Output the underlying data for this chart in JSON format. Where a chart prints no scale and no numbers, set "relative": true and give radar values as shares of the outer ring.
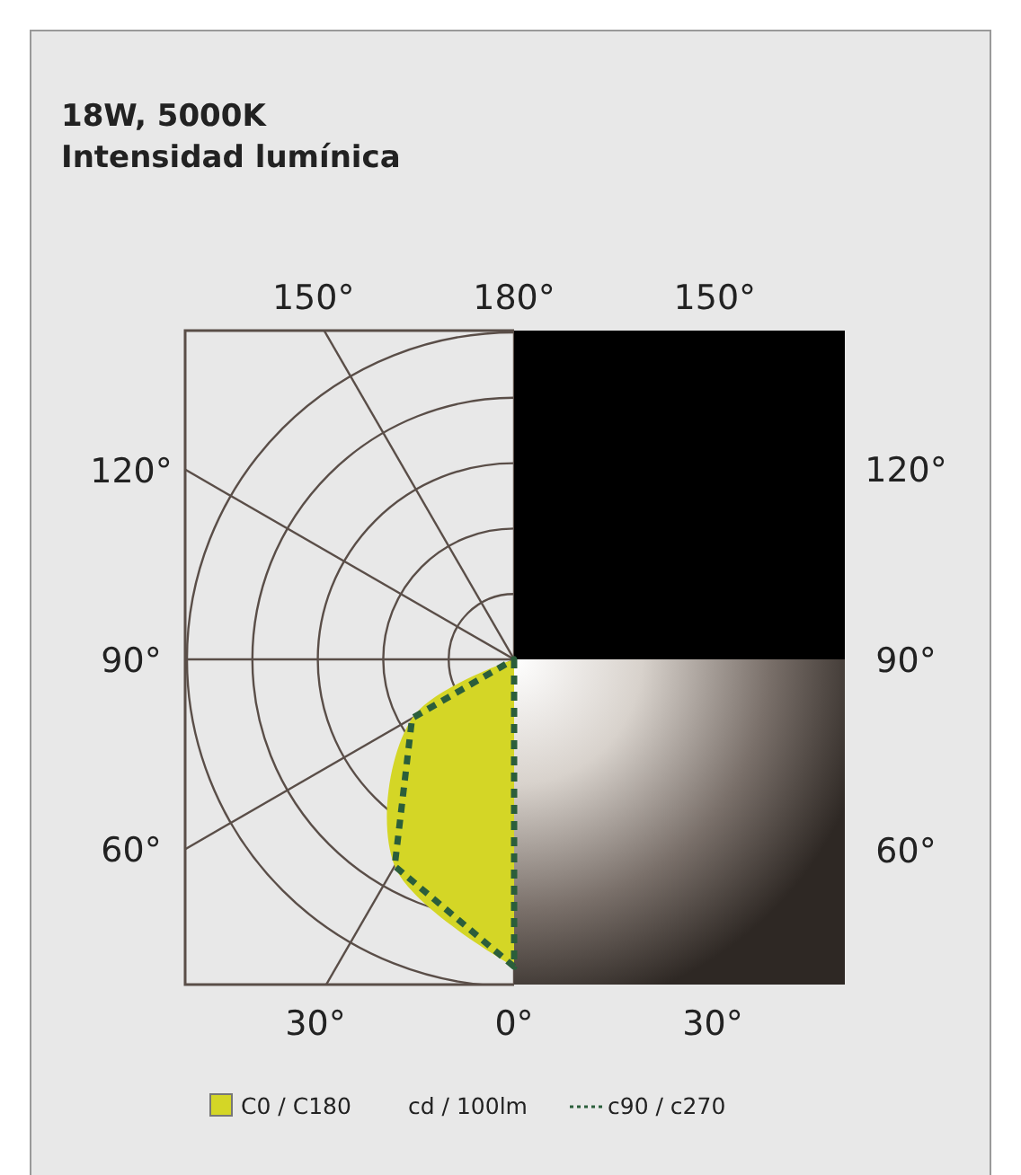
{
  "chart_data": {
    "type": "radar",
    "title": "18W, 5000K",
    "subtitle": "Intensidad lumínica",
    "categories": [
      "180°",
      "150°",
      "120°",
      "90°",
      "60°",
      "30°",
      "0°",
      "30°",
      "60°",
      "90°",
      "120°",
      "150°"
    ],
    "relative": true,
    "series": [
      {
        "name": "C0 / C180",
        "color": "#d4d626",
        "values": [
          0,
          null,
          null,
          null,
          null,
          null,
          0.94,
          0.73,
          0.36,
          0,
          0,
          0
        ]
      },
      {
        "name": "c90 / c270",
        "color": "#2b5e3b",
        "line_style": "dashed",
        "values": [
          0,
          null,
          null,
          null,
          null,
          null,
          0.94,
          0.73,
          0.36,
          0,
          0,
          0
        ]
      }
    ],
    "annotations": [
      "cd / 100lm"
    ],
    "legend": "bottom",
    "grid": true
  }
}
